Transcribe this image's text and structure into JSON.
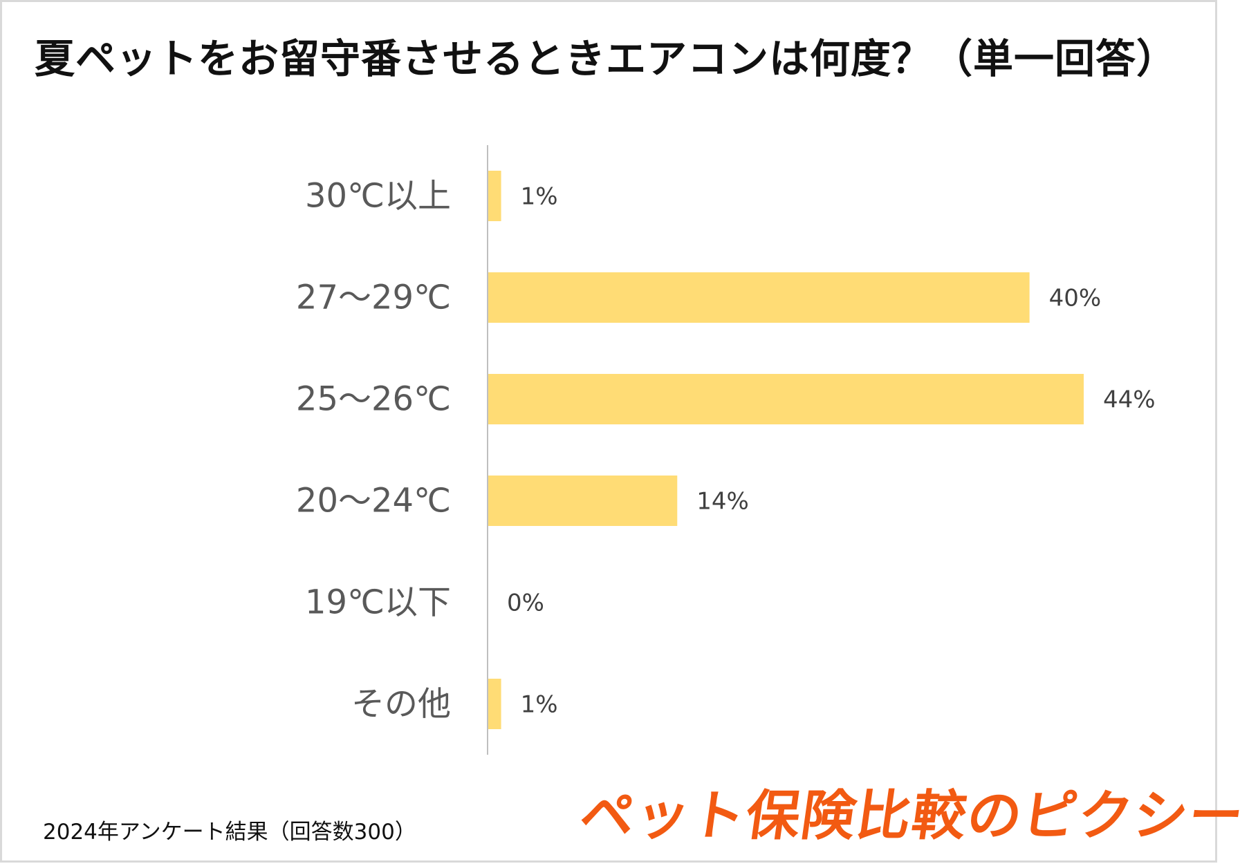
{
  "title": "夏ペットをお留守番させるときエアコンは何度？（単一回答）",
  "chart_data": {
    "type": "bar",
    "orientation": "horizontal",
    "title": "夏ペットをお留守番させるときエアコンは何度？（単一回答）",
    "categories": [
      "30℃以上",
      "27～29℃",
      "25～26℃",
      "20～24℃",
      "19℃以下",
      "その他"
    ],
    "values": [
      1,
      40,
      44,
      14,
      0,
      1
    ],
    "value_labels": [
      "1%",
      "40%",
      "44%",
      "14%",
      "0%",
      "1%"
    ],
    "unit": "%",
    "xlim": [
      0,
      44
    ],
    "grid": false,
    "legend": "none",
    "bar_color": "#FFDC75"
  },
  "footnote": "2024年アンケート結果（回答数300）",
  "brand": "ペット保険比較のピクシー",
  "colors": {
    "bar": "#FFDC75",
    "axis": "#bfbfbf",
    "category_text": "#595959",
    "value_text": "#404040",
    "brand": "#f25a12"
  }
}
